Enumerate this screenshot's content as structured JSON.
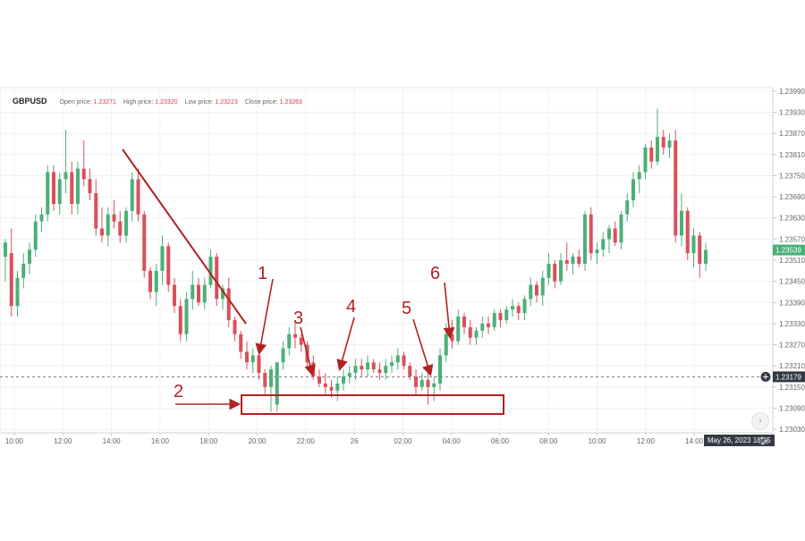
{
  "header": {
    "symbol": "GBPUSD",
    "open_label": "Open price:",
    "open_value": "1.23271",
    "high_label": "High price:",
    "high_value": "1.23320",
    "low_label": "Low price:",
    "low_value": "1.23223",
    "close_label": "Close price:",
    "close_value": "1.23263"
  },
  "colors": {
    "up": "#4caf78",
    "down": "#d9505b",
    "annotation": "#b22222",
    "current_tag": "#4caf78",
    "crosshair_tag": "#333a44"
  },
  "crosshair_date": "May 26, 2023  18:15",
  "chart_data": {
    "type": "candlestick",
    "symbol": "GBPUSD",
    "x_ticks": [
      "10:00",
      "12:00",
      "14:00",
      "16:00",
      "18:00",
      "20:00",
      "22:00",
      "26",
      "02:00",
      "04:00",
      "06:00",
      "08:00",
      "10:00",
      "12:00",
      "14:00"
    ],
    "y_ticks": [
      "1.23990",
      "1.23930",
      "1.23870",
      "1.23810",
      "1.23750",
      "1.23690",
      "1.23630",
      "1.23570",
      "1.23510",
      "1.23450",
      "1.23390",
      "1.23330",
      "1.23270",
      "1.23210",
      "1.23150",
      "1.23090",
      "1.23030"
    ],
    "ylim": [
      1.2302,
      1.24
    ],
    "current_price": "1.23539",
    "crosshair_price": "1.23179",
    "annotations": [
      "1",
      "2",
      "3",
      "4",
      "5",
      "6"
    ],
    "candles": [
      [
        1.2352,
        1.2357,
        1.2345,
        1.2356
      ],
      [
        1.2353,
        1.236,
        1.2335,
        1.2338
      ],
      [
        1.2338,
        1.2348,
        1.2335,
        1.2346
      ],
      [
        1.2346,
        1.2353,
        1.2343,
        1.235
      ],
      [
        1.235,
        1.2356,
        1.2347,
        1.2354
      ],
      [
        1.2354,
        1.2364,
        1.2352,
        1.2362
      ],
      [
        1.2362,
        1.2366,
        1.2359,
        1.2364
      ],
      [
        1.2364,
        1.2378,
        1.2362,
        1.2376
      ],
      [
        1.2376,
        1.2378,
        1.2365,
        1.2367
      ],
      [
        1.2367,
        1.2376,
        1.2364,
        1.2374
      ],
      [
        1.2374,
        1.2388,
        1.237,
        1.2376
      ],
      [
        1.2376,
        1.2379,
        1.2364,
        1.2367
      ],
      [
        1.2367,
        1.2379,
        1.2364,
        1.2377
      ],
      [
        1.2377,
        1.2385,
        1.2372,
        1.2374
      ],
      [
        1.2374,
        1.2377,
        1.2368,
        1.237
      ],
      [
        1.237,
        1.2374,
        1.2358,
        1.236
      ],
      [
        1.236,
        1.2366,
        1.2356,
        1.2358
      ],
      [
        1.2358,
        1.2366,
        1.2355,
        1.2364
      ],
      [
        1.2364,
        1.2368,
        1.236,
        1.2362
      ],
      [
        1.2362,
        1.2365,
        1.2356,
        1.2358
      ],
      [
        1.2358,
        1.2366,
        1.2356,
        1.2365
      ],
      [
        1.2365,
        1.2376,
        1.2362,
        1.2374
      ],
      [
        1.2374,
        1.2377,
        1.2362,
        1.2364
      ],
      [
        1.2364,
        1.2365,
        1.2346,
        1.2348
      ],
      [
        1.2348,
        1.2349,
        1.234,
        1.2342
      ],
      [
        1.2342,
        1.235,
        1.2338,
        1.2348
      ],
      [
        1.2348,
        1.2358,
        1.2344,
        1.2355
      ],
      [
        1.2355,
        1.2356,
        1.2342,
        1.2344
      ],
      [
        1.2344,
        1.2346,
        1.2336,
        1.2338
      ],
      [
        1.2338,
        1.234,
        1.2328,
        1.233
      ],
      [
        1.233,
        1.2342,
        1.2328,
        1.234
      ],
      [
        1.234,
        1.2348,
        1.2337,
        1.2344
      ],
      [
        1.2344,
        1.2346,
        1.2338,
        1.2339
      ],
      [
        1.2339,
        1.2346,
        1.2337,
        1.2344
      ],
      [
        1.2344,
        1.2354,
        1.2343,
        1.2352
      ],
      [
        1.2352,
        1.2353,
        1.2338,
        1.234
      ],
      [
        1.234,
        1.2344,
        1.2337,
        1.2343
      ],
      [
        1.2343,
        1.2346,
        1.2332,
        1.2334
      ],
      [
        1.2334,
        1.2335,
        1.2328,
        1.233
      ],
      [
        1.233,
        1.2331,
        1.2323,
        1.2325
      ],
      [
        1.2325,
        1.2328,
        1.232,
        1.2322
      ],
      [
        1.2322,
        1.2326,
        1.2319,
        1.2324
      ],
      [
        1.2324,
        1.2325,
        1.2317,
        1.2319
      ],
      [
        1.2319,
        1.232,
        1.2313,
        1.2315
      ],
      [
        1.2315,
        1.2321,
        1.2308,
        1.232
      ],
      [
        1.231,
        1.2322,
        1.2308,
        1.2322
      ],
      [
        1.2322,
        1.2328,
        1.232,
        1.2326
      ],
      [
        1.2326,
        1.2332,
        1.2324,
        1.233
      ],
      [
        1.233,
        1.2334,
        1.2326,
        1.2329
      ],
      [
        1.2329,
        1.233,
        1.2325,
        1.2327
      ],
      [
        1.2327,
        1.2328,
        1.232,
        1.2322
      ],
      [
        1.2322,
        1.2324,
        1.2317,
        1.2318
      ],
      [
        1.2318,
        1.232,
        1.2315,
        1.2316
      ],
      [
        1.2316,
        1.2319,
        1.2313,
        1.2315
      ],
      [
        1.2315,
        1.2317,
        1.2312,
        1.2314
      ],
      [
        1.2314,
        1.2318,
        1.2311,
        1.2316
      ],
      [
        1.2316,
        1.232,
        1.2314,
        1.2318
      ],
      [
        1.2318,
        1.2321,
        1.2316,
        1.2319
      ],
      [
        1.2319,
        1.2323,
        1.2317,
        1.2321
      ],
      [
        1.2321,
        1.2323,
        1.2318,
        1.232
      ],
      [
        1.232,
        1.2324,
        1.2318,
        1.2322
      ],
      [
        1.2322,
        1.2323,
        1.2319,
        1.232
      ],
      [
        1.232,
        1.2322,
        1.2317,
        1.2319
      ],
      [
        1.2319,
        1.2323,
        1.2317,
        1.2321
      ],
      [
        1.2321,
        1.2324,
        1.2319,
        1.2322
      ],
      [
        1.2322,
        1.2326,
        1.232,
        1.2324
      ],
      [
        1.2324,
        1.2325,
        1.232,
        1.2321
      ],
      [
        1.2321,
        1.2322,
        1.2317,
        1.2318
      ],
      [
        1.2318,
        1.232,
        1.2313,
        1.2315
      ],
      [
        1.2315,
        1.2319,
        1.2314,
        1.2317
      ],
      [
        1.2317,
        1.2319,
        1.231,
        1.2315
      ],
      [
        1.2315,
        1.2318,
        1.2311,
        1.2316
      ],
      [
        1.2316,
        1.2326,
        1.2314,
        1.2324
      ],
      [
        1.2324,
        1.2333,
        1.2322,
        1.233
      ],
      [
        1.233,
        1.2334,
        1.2326,
        1.2328
      ],
      [
        1.2328,
        1.2337,
        1.2327,
        1.2335
      ],
      [
        1.2335,
        1.2336,
        1.233,
        1.2332
      ],
      [
        1.2332,
        1.2334,
        1.2327,
        1.2329
      ],
      [
        1.2329,
        1.2332,
        1.2327,
        1.2331
      ],
      [
        1.2331,
        1.2335,
        1.2329,
        1.2333
      ],
      [
        1.2333,
        1.2335,
        1.233,
        1.2332
      ],
      [
        1.2332,
        1.2337,
        1.2331,
        1.2336
      ],
      [
        1.2336,
        1.2337,
        1.2332,
        1.2334
      ],
      [
        1.2334,
        1.2338,
        1.2333,
        1.2337
      ],
      [
        1.2337,
        1.234,
        1.2335,
        1.2338
      ],
      [
        1.2338,
        1.2339,
        1.2334,
        1.2336
      ],
      [
        1.2336,
        1.2341,
        1.2334,
        1.234
      ],
      [
        1.234,
        1.2346,
        1.2338,
        1.2344
      ],
      [
        1.2344,
        1.2345,
        1.2339,
        1.2341
      ],
      [
        1.2341,
        1.2348,
        1.2338,
        1.2346
      ],
      [
        1.2346,
        1.2353,
        1.2344,
        1.235
      ],
      [
        1.235,
        1.2351,
        1.2343,
        1.2345
      ],
      [
        1.2345,
        1.2353,
        1.2344,
        1.2351
      ],
      [
        1.2351,
        1.2356,
        1.2348,
        1.235
      ],
      [
        1.235,
        1.2353,
        1.2347,
        1.2352
      ],
      [
        1.2352,
        1.2354,
        1.2349,
        1.235
      ],
      [
        1.235,
        1.2365,
        1.2348,
        1.2364
      ],
      [
        1.2364,
        1.2366,
        1.2351,
        1.2353
      ],
      [
        1.2353,
        1.2356,
        1.235,
        1.2354
      ],
      [
        1.2354,
        1.2359,
        1.2352,
        1.2357
      ],
      [
        1.2357,
        1.2361,
        1.2353,
        1.236
      ],
      [
        1.236,
        1.2362,
        1.2355,
        1.2356
      ],
      [
        1.2356,
        1.2365,
        1.2354,
        1.2364
      ],
      [
        1.2364,
        1.237,
        1.2362,
        1.2368
      ],
      [
        1.2368,
        1.2376,
        1.2366,
        1.2374
      ],
      [
        1.2374,
        1.2378,
        1.237,
        1.2376
      ],
      [
        1.2376,
        1.2384,
        1.2374,
        1.2383
      ],
      [
        1.2383,
        1.2385,
        1.2377,
        1.2379
      ],
      [
        1.2379,
        1.2394,
        1.2378,
        1.2386
      ],
      [
        1.2386,
        1.2388,
        1.2381,
        1.2383
      ],
      [
        1.2383,
        1.2387,
        1.238,
        1.2385
      ],
      [
        1.2385,
        1.2388,
        1.2356,
        1.2358
      ],
      [
        1.2358,
        1.237,
        1.2355,
        1.2365
      ],
      [
        1.2365,
        1.2366,
        1.2351,
        1.2353
      ],
      [
        1.2353,
        1.236,
        1.2349,
        1.2358
      ],
      [
        1.2358,
        1.2359,
        1.2346,
        1.235
      ],
      [
        1.235,
        1.2356,
        1.2348,
        1.23539
      ]
    ]
  }
}
